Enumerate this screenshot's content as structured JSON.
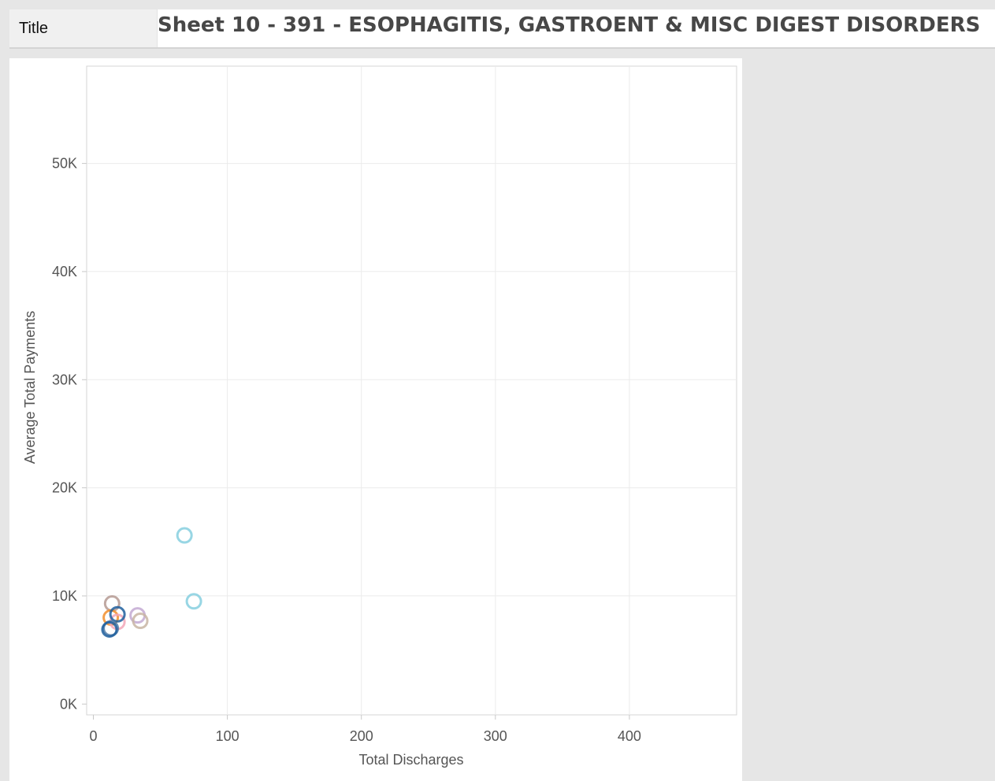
{
  "header": {
    "tab_label": "Title",
    "title": "Sheet 10 - 391 - ESOPHAGITIS, GASTROENT & MISC DIGEST DISORDERS"
  },
  "chart_data": {
    "type": "scatter",
    "title": "Sheet 10 - 391 - ESOPHAGITIS, GASTROENT & MISC DIGEST DISORDERS",
    "xlabel": "Total Discharges",
    "ylabel": "Average Total Payments",
    "xlim": [
      -5,
      480
    ],
    "ylim": [
      -1000,
      59000
    ],
    "x_ticks": [
      {
        "v": 0,
        "label": "0"
      },
      {
        "v": 100,
        "label": "100"
      },
      {
        "v": 200,
        "label": "200"
      },
      {
        "v": 300,
        "label": "300"
      },
      {
        "v": 400,
        "label": "400"
      }
    ],
    "y_ticks": [
      {
        "v": 0,
        "label": "0K"
      },
      {
        "v": 10000,
        "label": "10K"
      },
      {
        "v": 20000,
        "label": "20K"
      },
      {
        "v": 30000,
        "label": "30K"
      },
      {
        "v": 40000,
        "label": "40K"
      },
      {
        "v": 50000,
        "label": "50K"
      }
    ],
    "grid": true,
    "marker": "hollow-circle",
    "points": [
      {
        "x": 68,
        "y": 15600,
        "color": "#86cfdf"
      },
      {
        "x": 75,
        "y": 9500,
        "color": "#86cfdf"
      },
      {
        "x": 14,
        "y": 9300,
        "color": "#b59a93"
      },
      {
        "x": 13,
        "y": 8000,
        "color": "#f28e2b"
      },
      {
        "x": 18,
        "y": 7600,
        "color": "#f2a7b8"
      },
      {
        "x": 33,
        "y": 8200,
        "color": "#c3a9d2"
      },
      {
        "x": 35,
        "y": 7700,
        "color": "#c8b5a3"
      },
      {
        "x": 18,
        "y": 8300,
        "color": "#1f5f9e"
      },
      {
        "x": 13,
        "y": 7000,
        "color": "#4e79a7"
      },
      {
        "x": 12,
        "y": 6900,
        "color": "#1f5f9e"
      }
    ],
    "colors": {
      "grid": "#ebebeb",
      "axis": "#c8c8c8",
      "text": "#555555"
    }
  }
}
